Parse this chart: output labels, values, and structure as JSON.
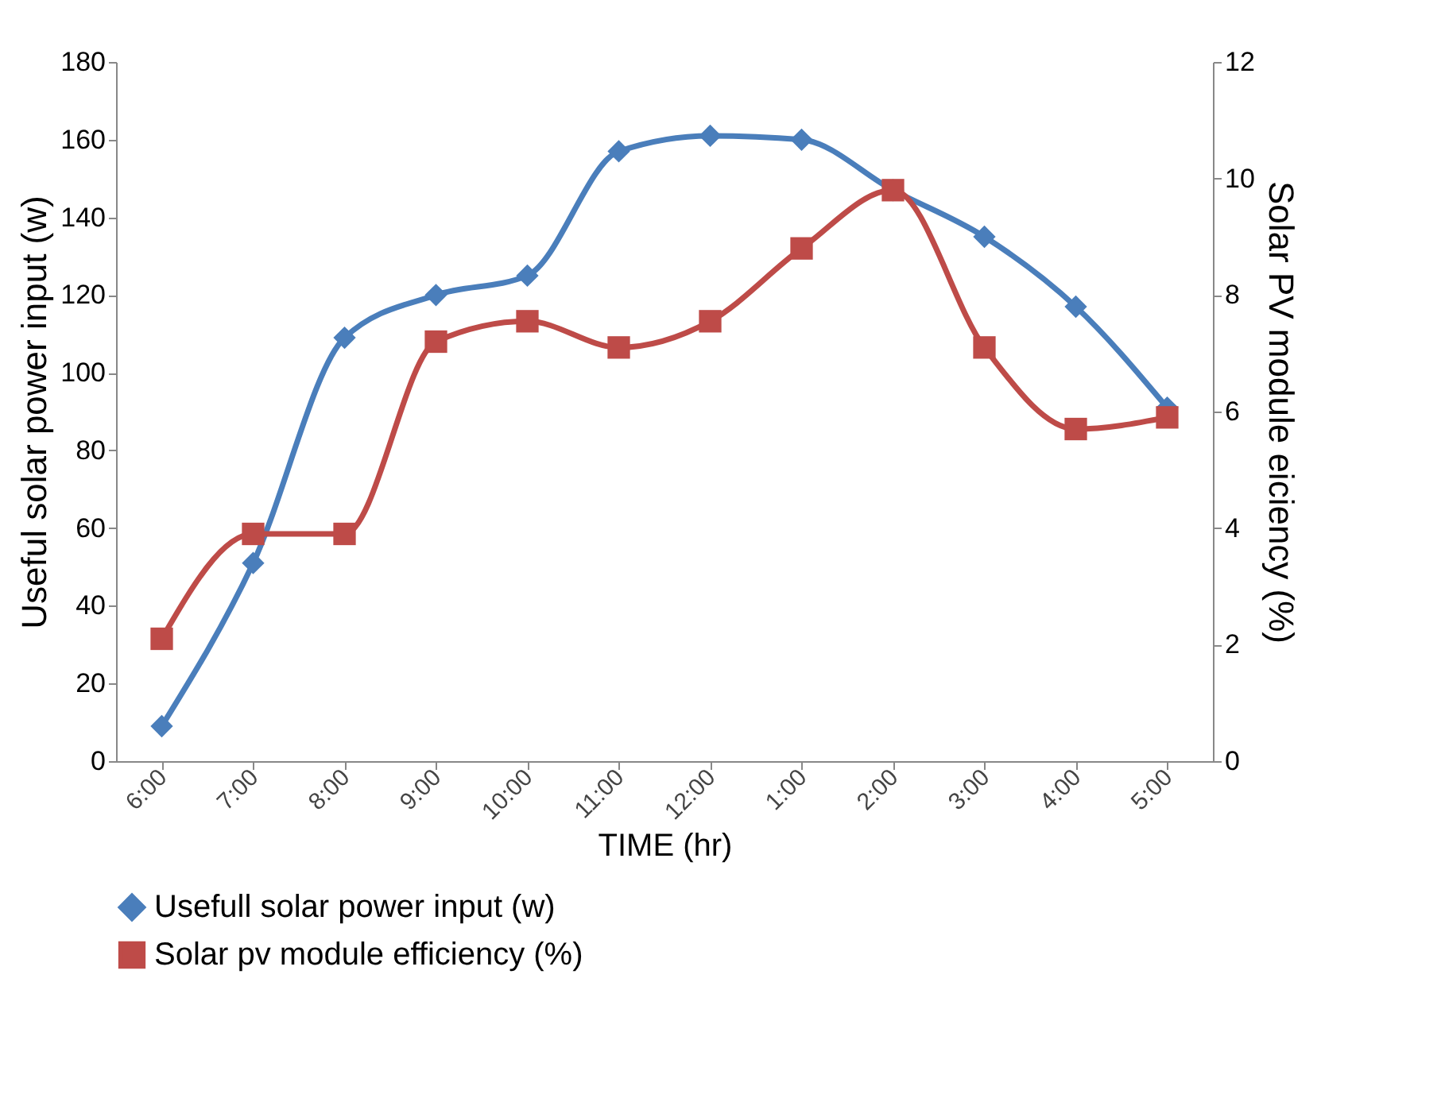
{
  "chart_data": {
    "type": "line",
    "xlabel": "TIME (hr)",
    "ylabel": "Useful solar power input (w)",
    "y2label": "Solar PV module eiciency (%)",
    "categories": [
      "6:00",
      "7:00",
      "8:00",
      "9:00",
      "10:00",
      "11:00",
      "12:00",
      "1:00",
      "2:00",
      "3:00",
      "4:00",
      "5:00"
    ],
    "series": [
      {
        "name": "Usefull solar power input (w)",
        "color": "#4a7ebb",
        "marker": "diamond",
        "values": [
          9,
          51,
          109,
          120,
          125,
          157,
          161,
          160,
          147,
          135,
          117,
          91
        ]
      },
      {
        "name": "Solar pv module efficiency (%)",
        "color": "#be4b48",
        "marker": "square",
        "axis": "y2",
        "values": [
          2.1,
          3.9,
          3.9,
          7.2,
          7.55,
          7.1,
          7.55,
          8.8,
          9.8,
          7.1,
          5.7,
          5.9
        ]
      }
    ],
    "ylim": [
      0,
      180
    ],
    "yticks": [
      0,
      20,
      40,
      60,
      80,
      100,
      120,
      140,
      160,
      180
    ],
    "y2lim": [
      0,
      12
    ],
    "y2ticks": [
      0,
      2,
      4,
      6,
      8,
      10,
      12
    ],
    "grid": false,
    "legend": "bottom",
    "line_style": "solid"
  }
}
